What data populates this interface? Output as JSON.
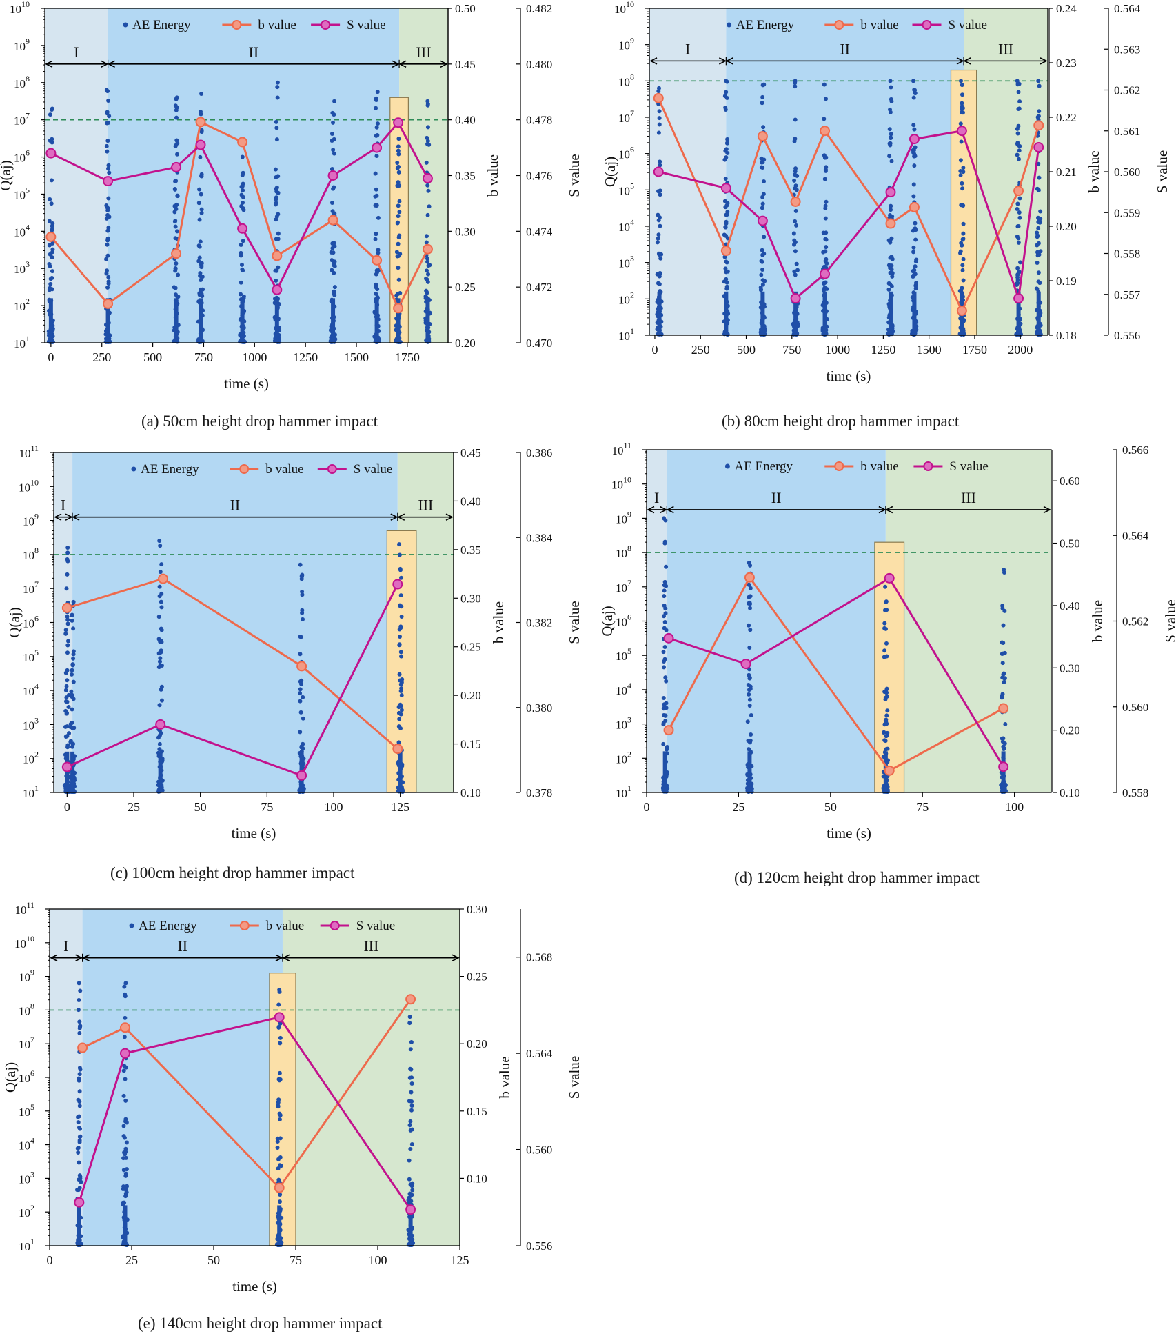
{
  "figure": {
    "colors": {
      "energy": "#1f4fa8",
      "b_line": "#ee6a4c",
      "b_marker_fill": "#f39a84",
      "s_line": "#c2128d",
      "s_marker_fill": "#de6cc0",
      "stage1_bg": "#d6e5f0",
      "stage2_bg": "#b3d8f3",
      "stage3_bg": "#d6e7cf",
      "highlight_bg": "#fbe0a8",
      "highlight_border": "#8a7a50",
      "threshold_line": "#2e8b57"
    },
    "legend": {
      "energy": "AE Energy",
      "b": "b value",
      "s": "S value"
    },
    "stage_labels": [
      "I",
      "II",
      "III"
    ],
    "y1_label": "Q(aj)",
    "y2_label": "b value",
    "y3_label": "S value",
    "x_label": "time (s)"
  },
  "chart_data": [
    {
      "id": "a",
      "type": "scatter",
      "title": "(a)  50cm height drop hammer impact",
      "x_range": [
        -30,
        1950
      ],
      "x_ticks": [
        0,
        250,
        500,
        750,
        1000,
        1250,
        1500,
        1750
      ],
      "y1_log_range": [
        1,
        10
      ],
      "y2_range": [
        0.2,
        0.5
      ],
      "y2_ticks": [
        0.2,
        0.25,
        0.3,
        0.35,
        0.4,
        0.45,
        0.5
      ],
      "y3_range": [
        0.47,
        0.482
      ],
      "y3_ticks": [
        0.47,
        0.472,
        0.474,
        0.476,
        0.478,
        0.48,
        0.482
      ],
      "stages": [
        [
          -30,
          280
        ],
        [
          280,
          1710
        ],
        [
          1710,
          1950
        ]
      ],
      "highlight": [
        1665,
        1755,
        7.6
      ],
      "threshold_log": 7,
      "arrow_log": 8.5,
      "energy_clusters": [
        [
          0,
          7.3
        ],
        [
          280,
          7.8
        ],
        [
          615,
          7.6
        ],
        [
          735,
          7.7
        ],
        [
          940,
          6.0
        ],
        [
          1110,
          8.0
        ],
        [
          1385,
          7.5
        ],
        [
          1600,
          7.75
        ],
        [
          1705,
          7.0
        ],
        [
          1850,
          7.5
        ]
      ],
      "b_series": {
        "x": [
          0,
          280,
          615,
          735,
          940,
          1110,
          1385,
          1600,
          1705,
          1850
        ],
        "y": [
          0.295,
          0.235,
          0.28,
          0.398,
          0.38,
          0.278,
          0.31,
          0.274,
          0.231,
          0.284
        ]
      },
      "s_series": {
        "x": [
          0,
          280,
          615,
          735,
          940,
          1110,
          1385,
          1600,
          1705,
          1850
        ],
        "y": [
          0.4768,
          0.4758,
          0.4763,
          0.4771,
          0.4741,
          0.4719,
          0.476,
          0.477,
          0.4779,
          0.4759
        ]
      }
    },
    {
      "id": "b",
      "type": "scatter",
      "title": "(b)  80cm height drop hammer impact",
      "x_range": [
        -30,
        2150
      ],
      "x_ticks": [
        0,
        250,
        500,
        750,
        1000,
        1250,
        1500,
        1750,
        2000
      ],
      "y1_log_range": [
        1,
        10
      ],
      "y2_range": [
        0.18,
        0.24
      ],
      "y2_ticks": [
        0.18,
        0.19,
        0.2,
        0.21,
        0.22,
        0.23,
        0.24
      ],
      "y3_range": [
        0.556,
        0.564
      ],
      "y3_ticks": [
        0.556,
        0.557,
        0.558,
        0.559,
        0.56,
        0.561,
        0.562,
        0.563,
        0.564
      ],
      "stages": [
        [
          -30,
          390
        ],
        [
          390,
          1690
        ],
        [
          1690,
          2150
        ]
      ],
      "highlight": [
        1620,
        1760,
        8.3
      ],
      "threshold_log": 8,
      "arrow_log": 8.55,
      "energy_clusters": [
        [
          25,
          7.8
        ],
        [
          390,
          8.0
        ],
        [
          590,
          7.9
        ],
        [
          770,
          8.0
        ],
        [
          930,
          7.9
        ],
        [
          1290,
          8.0
        ],
        [
          1420,
          8.0
        ],
        [
          1680,
          8.0
        ],
        [
          1990,
          8.0
        ],
        [
          2100,
          8.0
        ]
      ],
      "b_series": {
        "x": [
          20,
          390,
          590,
          770,
          930,
          1290,
          1420,
          1680,
          1990,
          2100
        ],
        "y": [
          0.2235,
          0.1955,
          0.2165,
          0.2045,
          0.2175,
          0.2005,
          0.2035,
          0.1845,
          0.2065,
          0.2185
        ]
      },
      "s_series": {
        "x": [
          20,
          390,
          590,
          770,
          930,
          1290,
          1420,
          1680,
          1990,
          2100
        ],
        "y": [
          0.56,
          0.5596,
          0.5588,
          0.5569,
          0.5575,
          0.5595,
          0.5608,
          0.561,
          0.5569,
          0.5606
        ]
      }
    },
    {
      "id": "c",
      "type": "scatter",
      "title": "(c)  100cm height drop hammer impact",
      "x_range": [
        -5,
        145
      ],
      "x_ticks": [
        0,
        25,
        50,
        75,
        100,
        125
      ],
      "y1_log_range": [
        1,
        11
      ],
      "y2_range": [
        0.1,
        0.45
      ],
      "y2_ticks": [
        0.1,
        0.15,
        0.2,
        0.25,
        0.3,
        0.35,
        0.4,
        0.45
      ],
      "y3_range": [
        0.378,
        0.386
      ],
      "y3_ticks": [
        0.378,
        0.38,
        0.382,
        0.384,
        0.386
      ],
      "stages": [
        [
          -5,
          2
        ],
        [
          2,
          124
        ],
        [
          124,
          145
        ]
      ],
      "highlight": [
        120,
        131,
        8.7
      ],
      "threshold_log": 8,
      "arrow_log": 9.1,
      "energy_clusters": [
        [
          0,
          8.2
        ],
        [
          2,
          6.6
        ],
        [
          35,
          8.4
        ],
        [
          88,
          7.7
        ],
        [
          125,
          8.3
        ]
      ],
      "b_series": {
        "x": [
          0,
          36,
          88,
          124
        ],
        "y": [
          0.29,
          0.32,
          0.23,
          0.145
        ]
      },
      "s_series": {
        "x": [
          0,
          35,
          88,
          124
        ],
        "y": [
          0.3786,
          0.3796,
          0.3784,
          0.3829
        ]
      }
    },
    {
      "id": "d",
      "type": "scatter",
      "title": "(d)  120cm height drop hammer impact",
      "x_range": [
        0,
        110
      ],
      "x_ticks": [
        0,
        25,
        50,
        75,
        100
      ],
      "y1_log_range": [
        1,
        11
      ],
      "y2_range": [
        0.1,
        0.65
      ],
      "y2_ticks": [
        0.1,
        0.2,
        0.3,
        0.4,
        0.5,
        0.6
      ],
      "y3_range": [
        0.558,
        0.566
      ],
      "y3_ticks": [
        0.558,
        0.56,
        0.562,
        0.564,
        0.566
      ],
      "stages": [
        [
          0,
          5.5
        ],
        [
          5.5,
          65
        ],
        [
          65,
          110
        ]
      ],
      "highlight": [
        62,
        70,
        8.3
      ],
      "threshold_log": 8,
      "arrow_log": 9.25,
      "energy_clusters": [
        [
          5,
          9.0
        ],
        [
          28,
          7.7
        ],
        [
          65,
          7.0
        ],
        [
          97,
          7.5
        ]
      ],
      "b_series": {
        "x": [
          6,
          28,
          66,
          97
        ],
        "y": [
          0.2,
          0.445,
          0.135,
          0.235
        ]
      },
      "s_series": {
        "x": [
          6,
          27,
          66,
          97
        ],
        "y": [
          0.5616,
          0.561,
          0.563,
          0.5586
        ]
      }
    },
    {
      "id": "e",
      "type": "scatter",
      "title": "(e)  140cm height drop hammer impact",
      "x_range": [
        0,
        125
      ],
      "x_ticks": [
        0,
        25,
        50,
        75,
        100,
        125
      ],
      "y1_log_range": [
        1,
        11
      ],
      "y2_range": [
        0.05,
        0.3
      ],
      "y2_ticks": [
        0.1,
        0.15,
        0.2,
        0.25,
        0.3
      ],
      "y3_range": [
        0.556,
        0.57
      ],
      "y3_ticks": [
        0.556,
        0.56,
        0.564,
        0.568
      ],
      "stages": [
        [
          0,
          10
        ],
        [
          10,
          71
        ],
        [
          71,
          125
        ]
      ],
      "highlight": [
        67,
        75,
        9.1
      ],
      "threshold_log": 8,
      "arrow_log": 9.55,
      "energy_clusters": [
        [
          9,
          8.8
        ],
        [
          23,
          8.8
        ],
        [
          70,
          8.6
        ],
        [
          110,
          7.8
        ]
      ],
      "b_series": {
        "x": [
          10,
          23,
          70,
          110
        ],
        "y": [
          0.197,
          0.212,
          0.093,
          0.233
        ]
      },
      "s_series": {
        "x": [
          9,
          23,
          70,
          110
        ],
        "y": [
          0.5578,
          0.564,
          0.5655,
          0.5575
        ]
      }
    }
  ]
}
